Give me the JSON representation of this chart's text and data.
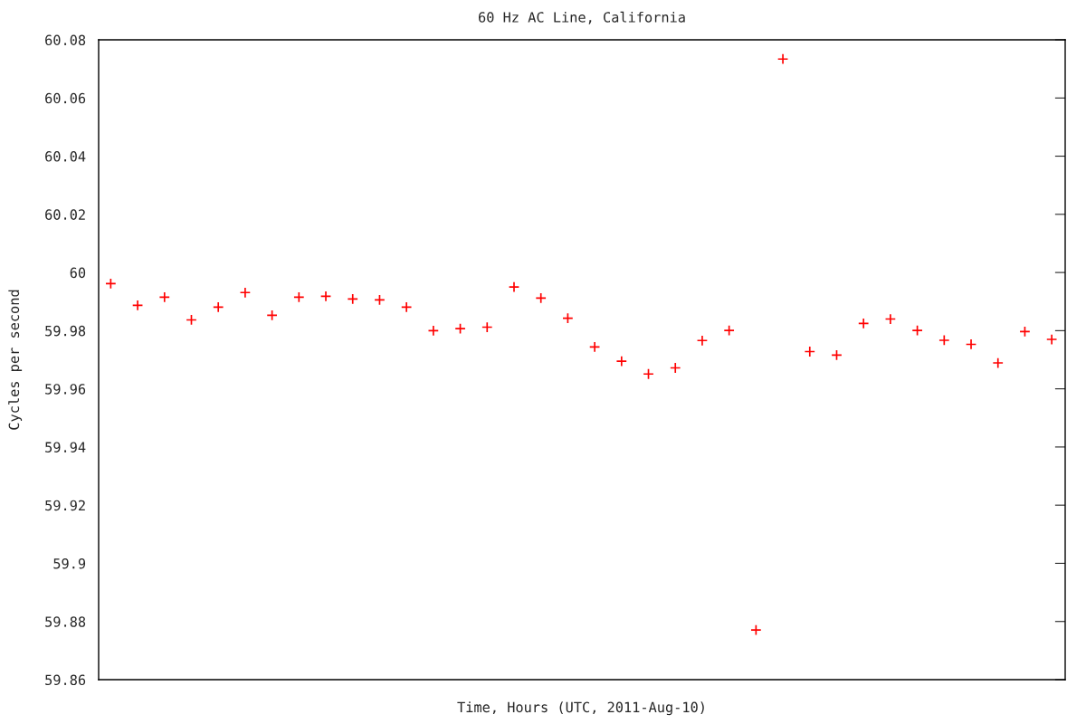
{
  "chart_data": {
    "type": "scatter",
    "title": "60 Hz AC Line, California",
    "xlabel": "Time, Hours (UTC, 2011-Aug-10)",
    "ylabel": "Cycles per second",
    "categories": [
      null,
      null,
      null,
      null,
      null,
      null,
      null,
      null,
      null,
      null,
      null,
      null,
      null,
      null,
      null,
      null,
      null,
      null,
      null,
      null,
      null,
      null,
      null,
      null,
      null,
      null,
      null,
      null,
      null,
      null,
      null,
      null,
      null,
      null,
      null,
      null
    ],
    "series": [
      {
        "color": "#ff0000",
        "values": [
          59.9962,
          59.9887,
          59.9915,
          59.9837,
          59.9881,
          59.9931,
          59.9853,
          59.9915,
          59.9918,
          59.9909,
          59.9906,
          59.9881,
          59.98,
          59.9807,
          59.9812,
          59.995,
          59.9912,
          59.9843,
          59.9744,
          59.9695,
          59.9651,
          59.9672,
          59.9766,
          59.9801,
          59.8771,
          60.0734,
          59.9728,
          59.9716,
          59.9825,
          59.984,
          59.9801,
          59.9767,
          59.9753,
          59.9689,
          59.9797,
          59.977
        ]
      }
    ],
    "ylim": [
      59.86,
      60.08
    ],
    "yticks": [
      59.86,
      59.88,
      59.9,
      59.92,
      59.94,
      59.96,
      59.98,
      60,
      60.02,
      60.04,
      60.06,
      60.08
    ],
    "marker": "cross",
    "grid": false,
    "legend": false,
    "tick_labels": "y"
  }
}
